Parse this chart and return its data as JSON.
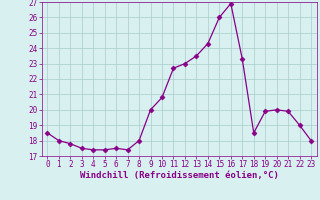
{
  "hours": [
    0,
    1,
    2,
    3,
    4,
    5,
    6,
    7,
    8,
    9,
    10,
    11,
    12,
    13,
    14,
    15,
    16,
    17,
    18,
    19,
    20,
    21,
    22,
    23
  ],
  "values": [
    18.5,
    18.0,
    17.8,
    17.5,
    17.4,
    17.4,
    17.5,
    17.4,
    18.0,
    20.0,
    20.8,
    22.7,
    23.0,
    23.5,
    24.3,
    26.0,
    26.9,
    23.3,
    18.5,
    19.9,
    20.0,
    19.9,
    19.0,
    18.0
  ],
  "line_color": "#880088",
  "marker": "D",
  "marker_size": 2.5,
  "bg_color": "#d8f0f0",
  "grid_color": "#aacccc",
  "xlabel": "Windchill (Refroidissement éolien,°C)",
  "ylim": [
    17,
    27
  ],
  "yticks": [
    17,
    18,
    19,
    20,
    21,
    22,
    23,
    24,
    25,
    26,
    27
  ],
  "xticks": [
    0,
    1,
    2,
    3,
    4,
    5,
    6,
    7,
    8,
    9,
    10,
    11,
    12,
    13,
    14,
    15,
    16,
    17,
    18,
    19,
    20,
    21,
    22,
    23
  ],
  "tick_fontsize": 5.5,
  "xlabel_fontsize": 6.5,
  "line_width": 0.9
}
